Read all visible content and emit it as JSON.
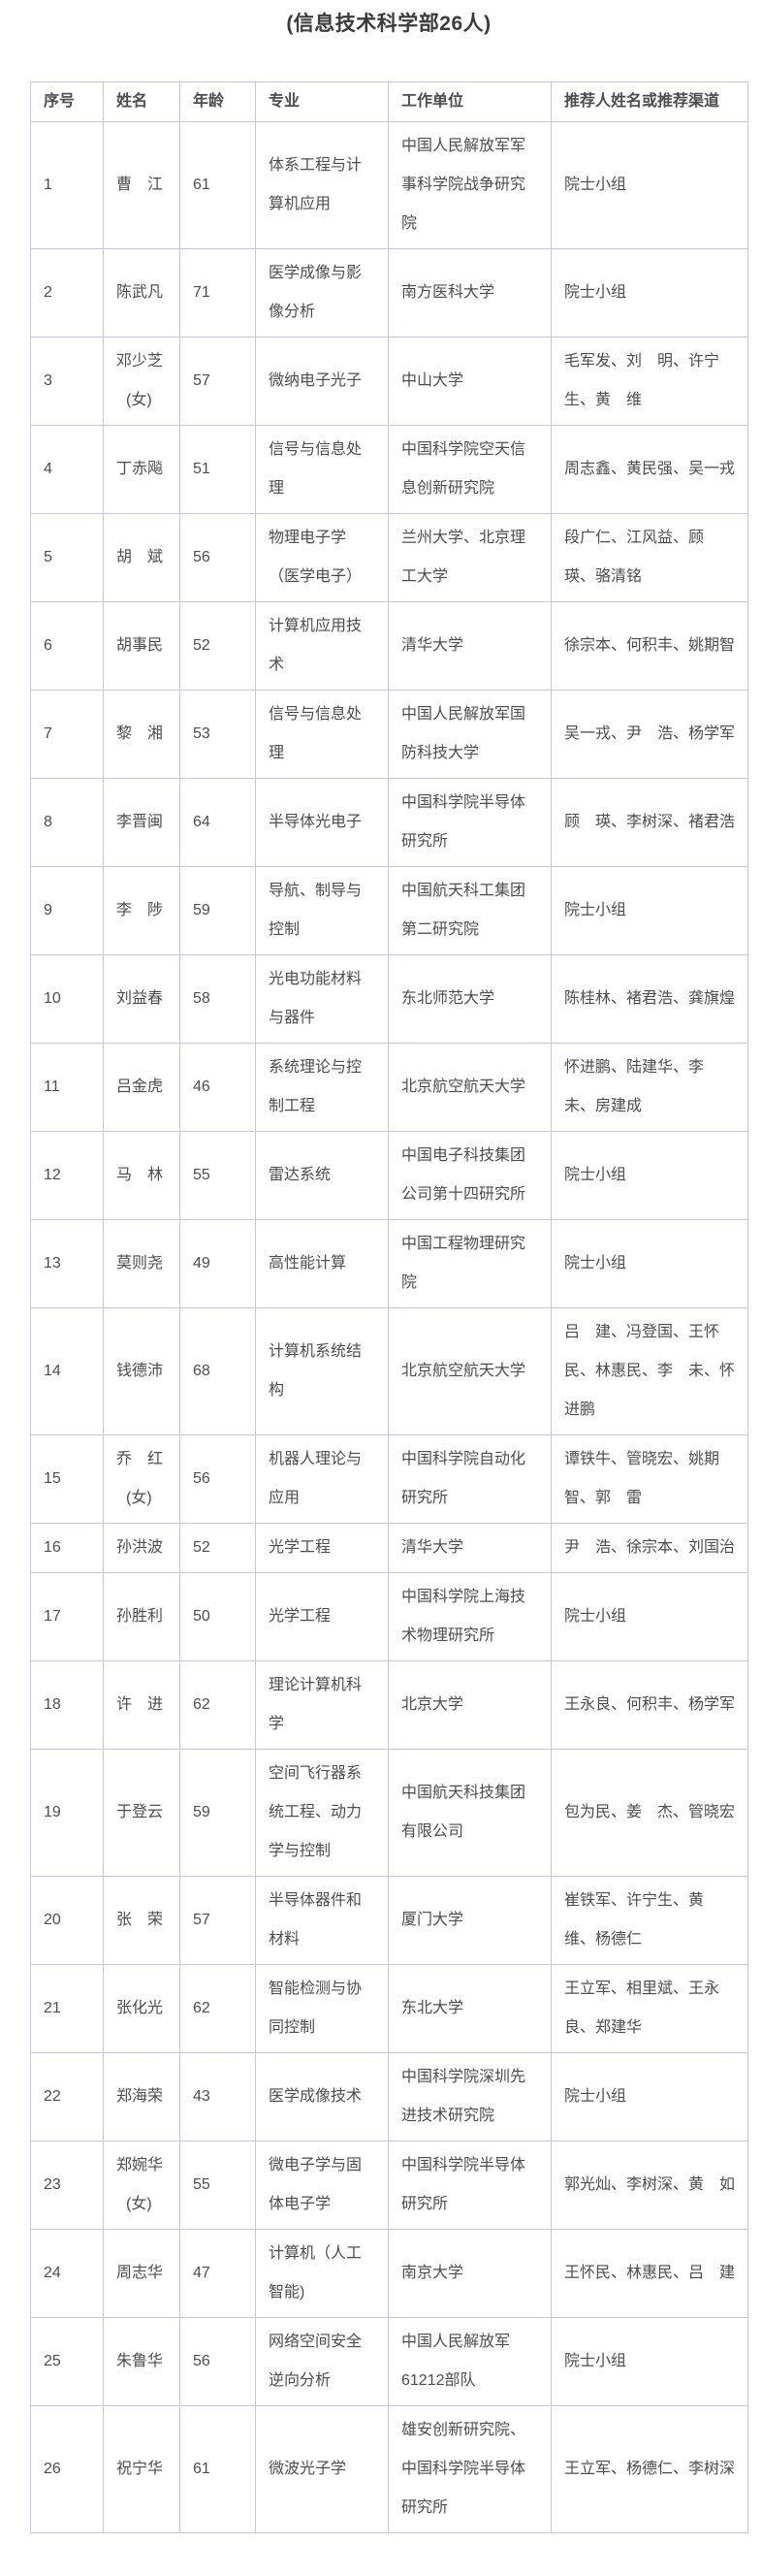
{
  "title": "(信息技术科学部26人)",
  "colors": {
    "table_border": "#c5c5df",
    "body_text": "#4d4d4d",
    "title_text": "#3b3b3b",
    "background": "#ffffff"
  },
  "table": {
    "headers": [
      "序号",
      "姓名",
      "年龄",
      "专业",
      "工作单位",
      "推荐人姓名或推荐渠道"
    ],
    "rows": [
      {
        "no": "1",
        "name": "曹　江",
        "gender": "",
        "age": "61",
        "major": "体系工程与计算机应用",
        "unit": "中国人民解放军军事科学院战争研究院",
        "recommender": "院士小组"
      },
      {
        "no": "2",
        "name": "陈武凡",
        "gender": "",
        "age": "71",
        "major": "医学成像与影像分析",
        "unit": "南方医科大学",
        "recommender": "院士小组"
      },
      {
        "no": "3",
        "name": "邓少芝",
        "gender": "(女)",
        "age": "57",
        "major": "微纳电子光子",
        "unit": "中山大学",
        "recommender": "毛军发、刘　明、许宁生、黄　维"
      },
      {
        "no": "4",
        "name": "丁赤飚",
        "gender": "",
        "age": "51",
        "major": "信号与信息处理",
        "unit": "中国科学院空天信息创新研究院",
        "recommender": "周志鑫、黄民强、吴一戎"
      },
      {
        "no": "5",
        "name": "胡　斌",
        "gender": "",
        "age": "56",
        "major": "物理电子学（医学电子）",
        "unit": "兰州大学、北京理工大学",
        "recommender": "段广仁、江风益、顾　瑛、骆清铭"
      },
      {
        "no": "6",
        "name": "胡事民",
        "gender": "",
        "age": "52",
        "major": "计算机应用技术",
        "unit": "清华大学",
        "recommender": "徐宗本、何积丰、姚期智"
      },
      {
        "no": "7",
        "name": "黎　湘",
        "gender": "",
        "age": "53",
        "major": "信号与信息处理",
        "unit": "中国人民解放军国防科技大学",
        "recommender": "吴一戎、尹　浩、杨学军"
      },
      {
        "no": "8",
        "name": "李晋闽",
        "gender": "",
        "age": "64",
        "major": "半导体光电子",
        "unit": "中国科学院半导体研究所",
        "recommender": "顾　瑛、李树深、褚君浩"
      },
      {
        "no": "9",
        "name": "李　陟",
        "gender": "",
        "age": "59",
        "major": "导航、制导与控制",
        "unit": "中国航天科工集团第二研究院",
        "recommender": "院士小组"
      },
      {
        "no": "10",
        "name": "刘益春",
        "gender": "",
        "age": "58",
        "major": "光电功能材料与器件",
        "unit": "东北师范大学",
        "recommender": "陈桂林、褚君浩、龚旗煌"
      },
      {
        "no": "11",
        "name": "吕金虎",
        "gender": "",
        "age": "46",
        "major": "系统理论与控制工程",
        "unit": "北京航空航天大学",
        "recommender": "怀进鹏、陆建华、李　未、房建成"
      },
      {
        "no": "12",
        "name": "马　林",
        "gender": "",
        "age": "55",
        "major": "雷达系统",
        "unit": "中国电子科技集团公司第十四研究所",
        "recommender": "院士小组"
      },
      {
        "no": "13",
        "name": "莫则尧",
        "gender": "",
        "age": "49",
        "major": "高性能计算",
        "unit": "中国工程物理研究院",
        "recommender": "院士小组"
      },
      {
        "no": "14",
        "name": "钱德沛",
        "gender": "",
        "age": "68",
        "major": "计算机系统结构",
        "unit": "北京航空航天大学",
        "recommender": "吕　建、冯登国、王怀民、林惠民、李　未、怀进鹏"
      },
      {
        "no": "15",
        "name": "乔　红",
        "gender": "(女)",
        "age": "56",
        "major": "机器人理论与应用",
        "unit": "中国科学院自动化研究所",
        "recommender": "谭铁牛、管晓宏、姚期智、郭　雷"
      },
      {
        "no": "16",
        "name": "孙洪波",
        "gender": "",
        "age": "52",
        "major": "光学工程",
        "unit": "清华大学",
        "recommender": "尹　浩、徐宗本、刘国治"
      },
      {
        "no": "17",
        "name": "孙胜利",
        "gender": "",
        "age": "50",
        "major": "光学工程",
        "unit": "中国科学院上海技术物理研究所",
        "recommender": "院士小组"
      },
      {
        "no": "18",
        "name": "许　进",
        "gender": "",
        "age": "62",
        "major": "理论计算机科学",
        "unit": "北京大学",
        "recommender": "王永良、何积丰、杨学军"
      },
      {
        "no": "19",
        "name": "于登云",
        "gender": "",
        "age": "59",
        "major": "空间飞行器系统工程、动力学与控制",
        "unit": "中国航天科技集团有限公司",
        "recommender": "包为民、姜　杰、管晓宏"
      },
      {
        "no": "20",
        "name": "张　荣",
        "gender": "",
        "age": "57",
        "major": "半导体器件和材料",
        "unit": "厦门大学",
        "recommender": "崔铁军、许宁生、黄　维、杨德仁"
      },
      {
        "no": "21",
        "name": "张化光",
        "gender": "",
        "age": "62",
        "major": "智能检测与协同控制",
        "unit": "东北大学",
        "recommender": "王立军、相里斌、王永良、郑建华"
      },
      {
        "no": "22",
        "name": "郑海荣",
        "gender": "",
        "age": "43",
        "major": "医学成像技术",
        "unit": "中国科学院深圳先进技术研究院",
        "recommender": "院士小组"
      },
      {
        "no": "23",
        "name": "郑婉华",
        "gender": "(女)",
        "age": "55",
        "major": "微电子学与固体电子学",
        "unit": "中国科学院半导体研究所",
        "recommender": "郭光灿、李树深、黄　如"
      },
      {
        "no": "24",
        "name": "周志华",
        "gender": "",
        "age": "47",
        "major": "计算机（人工智能)",
        "unit": "南京大学",
        "recommender": "王怀民、林惠民、吕　建"
      },
      {
        "no": "25",
        "name": "朱鲁华",
        "gender": "",
        "age": "56",
        "major": "网络空间安全逆向分析",
        "unit": "中国人民解放军61212部队",
        "recommender": "院士小组"
      },
      {
        "no": "26",
        "name": "祝宁华",
        "gender": "",
        "age": "61",
        "major": "微波光子学",
        "unit": "雄安创新研究院、中国科学院半导体研究所",
        "recommender": "王立军、杨德仁、李树深"
      }
    ]
  }
}
